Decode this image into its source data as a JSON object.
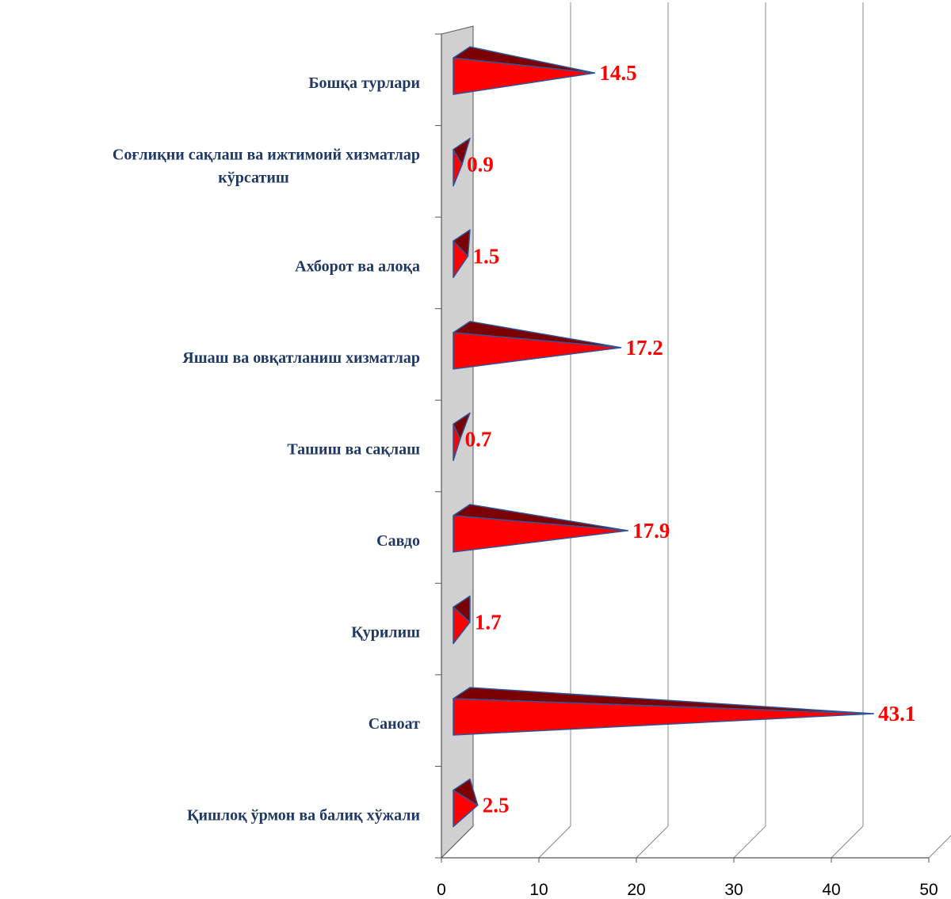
{
  "chart_data": {
    "type": "bar",
    "categories": [
      "Бошқа турлари",
      "Соғлиқни сақлаш ва ижтимоий хизматлар кўрсатиш",
      "Ахборот ва алоқа",
      "Яшаш ва овқатланиш хизматлар",
      "Ташиш ва сақлаш",
      "Савдо",
      "Қурилиш",
      "Саноат",
      "Қишлоқ ўрмон ва балиқ хўжали"
    ],
    "category_lines": [
      [
        "Бошқа турлари"
      ],
      [
        "Соғлиқни сақлаш ва ижтимоий хизматлар",
        "кўрсатиш"
      ],
      [
        "Ахборот ва алоқа"
      ],
      [
        "Яшаш ва овқатланиш хизматлар"
      ],
      [
        "Ташиш ва сақлаш"
      ],
      [
        "Савдо"
      ],
      [
        "Қурилиш"
      ],
      [
        "Саноат"
      ],
      [
        "Қишлоқ ўрмон ва балиқ хўжали"
      ]
    ],
    "values": [
      14.5,
      0.9,
      1.5,
      17.2,
      0.7,
      17.9,
      1.7,
      43.1,
      2.5
    ],
    "value_labels": [
      "14.5",
      "0.9",
      "1.5",
      "17.2",
      "0.7",
      "17.9",
      "1.7",
      "43.1",
      "2.5"
    ],
    "x_ticks": [
      "0",
      "10",
      "20",
      "30",
      "40",
      "50"
    ],
    "xlim": [
      0,
      50
    ],
    "orientation": "horizontal",
    "shape": "3d-cone",
    "grid": true,
    "legend": "none",
    "colors": {
      "cone_front": "#ff0000",
      "cone_top": "#7b0000",
      "cone_edge": "#2f5597",
      "value_label": "#ff0000",
      "category_label": "#1f3864",
      "wall": "#d0d0d0",
      "grid": "#888888"
    }
  }
}
